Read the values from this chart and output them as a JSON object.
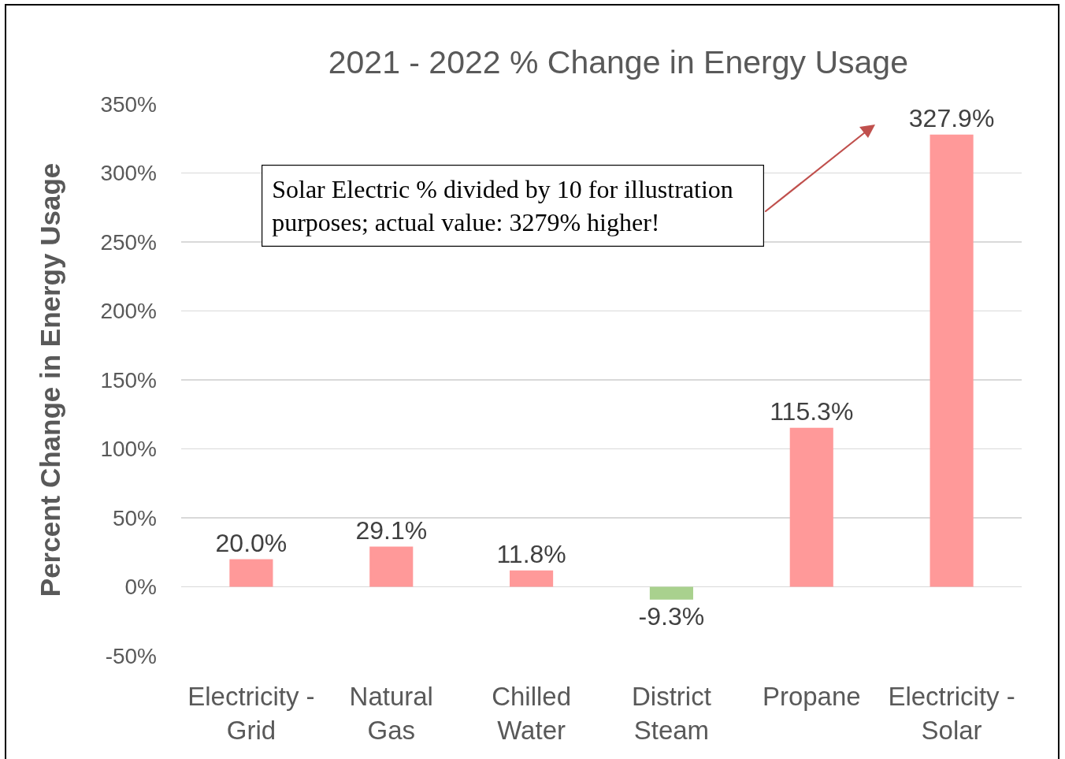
{
  "chart_data": {
    "type": "bar",
    "title": "2021 - 2022 % Change in Energy Usage",
    "ylabel": "Percent Change in Energy Usage",
    "categories": [
      "Electricity - Grid",
      "Natural Gas",
      "Chilled Water",
      "District Steam",
      "Propane",
      "Electricity - Solar"
    ],
    "values": [
      20.0,
      29.1,
      11.8,
      -9.3,
      115.3,
      327.9
    ],
    "colors": [
      "#ff9999",
      "#ff9999",
      "#ff9999",
      "#a9d18e",
      "#ff9999",
      "#ff9999"
    ],
    "value_labels": [
      "20.0%",
      "29.1%",
      "11.8%",
      "-9.3%",
      "115.3%",
      "327.9%"
    ],
    "ylim": [
      -50,
      350
    ],
    "yticks": [
      {
        "value": -50,
        "label": "-50%"
      },
      {
        "value": 0,
        "label": "0%"
      },
      {
        "value": 50,
        "label": "50%"
      },
      {
        "value": 100,
        "label": "100%"
      },
      {
        "value": 150,
        "label": "150%"
      },
      {
        "value": 200,
        "label": "200%"
      },
      {
        "value": 250,
        "label": "250%"
      },
      {
        "value": 300,
        "label": "300%"
      },
      {
        "value": 350,
        "label": "350%"
      }
    ],
    "grid": "y",
    "annotations": [
      "Solar Electric % divided by 10 for illustration purposes; actual value: 3279% higher!"
    ]
  }
}
